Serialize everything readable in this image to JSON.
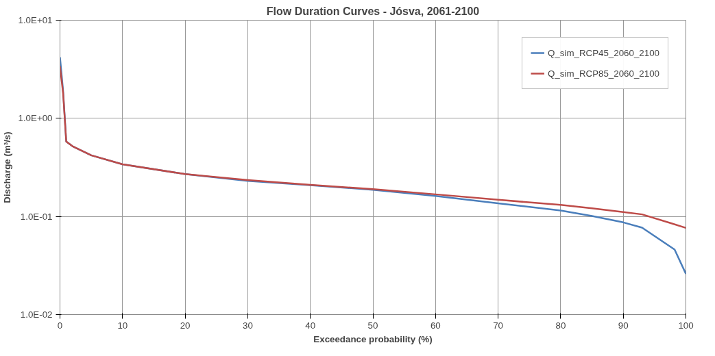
{
  "chart_data": {
    "type": "line",
    "title": "Flow Duration Curves - Jósva, 2061-2100",
    "xlabel": "Exceedance probability (%)",
    "ylabel": "Discharge (m³/s)",
    "xlim": [
      0,
      100
    ],
    "xticks": [
      0,
      10,
      20,
      30,
      40,
      50,
      60,
      70,
      80,
      90,
      100
    ],
    "ylim": [
      0.01,
      10
    ],
    "yticks": [
      {
        "value": 0.01,
        "label": "1.0E-02"
      },
      {
        "value": 0.1,
        "label": "1.0E-01"
      },
      {
        "value": 1,
        "label": "1.0E+00"
      },
      {
        "value": 10,
        "label": "1.0E+01"
      }
    ],
    "log": "y",
    "grid": true,
    "legend": "top right",
    "marker": "none",
    "line_style": "solid",
    "series": [
      {
        "name": "Q_sim_RCP45_2060_2100",
        "color": "#4a7ebb",
        "x": [
          0,
          0.5,
          1,
          2,
          5,
          10,
          20,
          30,
          40,
          50,
          60,
          70,
          80,
          85,
          90,
          93,
          98.2,
          100
        ],
        "values": [
          4.2,
          1.9,
          0.58,
          0.52,
          0.42,
          0.34,
          0.27,
          0.23,
          0.208,
          0.187,
          0.162,
          0.136,
          0.115,
          0.101,
          0.087,
          0.077,
          0.046,
          0.026
        ]
      },
      {
        "name": "Q_sim_RCP85_2060_2100",
        "color": "#be4b48",
        "x": [
          0,
          0.5,
          1,
          2,
          5,
          10,
          20,
          30,
          40,
          50,
          60,
          70,
          80,
          85,
          90,
          93,
          97.7,
          100
        ],
        "values": [
          3.4,
          1.8,
          0.58,
          0.52,
          0.42,
          0.34,
          0.27,
          0.235,
          0.21,
          0.19,
          0.168,
          0.148,
          0.131,
          0.121,
          0.111,
          0.105,
          0.085,
          0.0765
        ]
      }
    ]
  }
}
